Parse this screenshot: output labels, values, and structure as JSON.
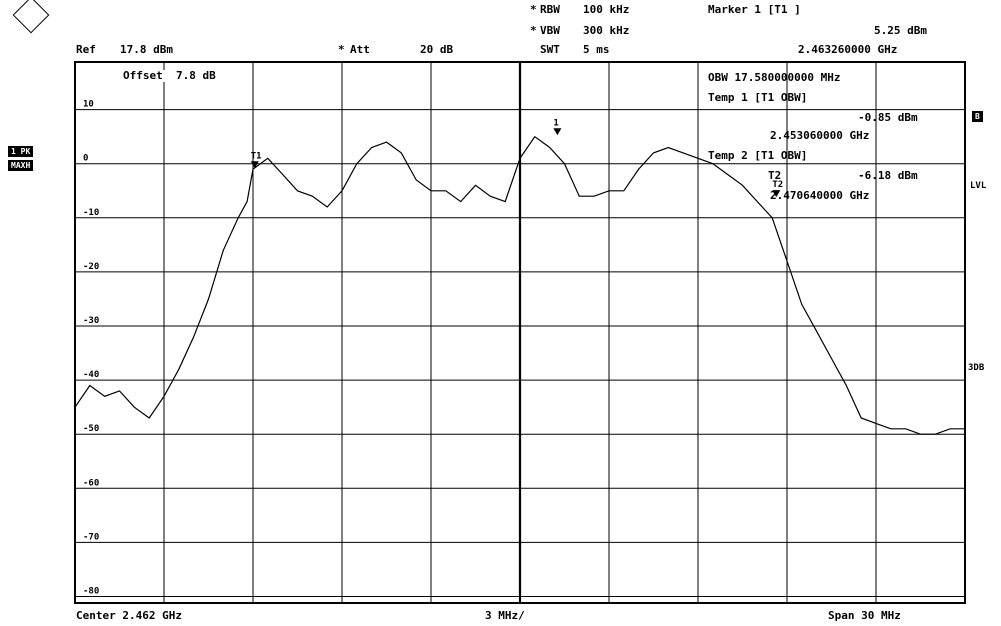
{
  "header": {
    "rbw_label": "RBW",
    "rbw_value": "100 kHz",
    "vbw_label": "VBW",
    "vbw_value": "300 kHz",
    "swt_label": "SWT",
    "swt_value": "5 ms",
    "marker_title": "Marker 1 [T1 ]",
    "marker_level": "5.25 dBm",
    "marker_freq": "2.463260000 GHz",
    "ref_label": "Ref",
    "ref_value": "17.8 dBm",
    "att_label": "Att",
    "att_value": "20 dB",
    "star": "*"
  },
  "side": {
    "badge_top": "1 PK",
    "badge_bottom": "MAXH",
    "right_badge": "B",
    "lvl": "LVL",
    "three_db": "3DB"
  },
  "overlay": {
    "offset": "Offset  7.8 dB",
    "obw_line": "OBW 17.580000000 MHz",
    "temp1_title": "Temp 1 [T1 OBW]",
    "temp1_level": "-0.85 dBm",
    "temp1_freq": "2.453060000 GHz",
    "temp2_title": "Temp 2 [T1 OBW]",
    "temp2_prefix": "T2",
    "temp2_level": "-6.18 dBm",
    "temp2_freq": "2.470640000 GHz"
  },
  "footer": {
    "center": "Center 2.462 GHz",
    "div": "3 MHz/",
    "span": "Span 30 MHz"
  },
  "chart_data": {
    "type": "line",
    "xlabel": "",
    "ylabel": "",
    "ylim": [
      -81.2,
      18.8
    ],
    "xlim": [
      2.447,
      2.477
    ],
    "y_ticks": [
      10,
      0,
      -10,
      -20,
      -30,
      -40,
      -50,
      -60,
      -70,
      -80
    ],
    "y_tick_labels": [
      "10",
      "0",
      "-10",
      "-20",
      "-30",
      "-40",
      "-50",
      "-60",
      "-70",
      "-80"
    ],
    "grid": true,
    "markers": [
      {
        "label": "1",
        "x": 2.46326,
        "y": 5.25
      },
      {
        "label": "T1",
        "x": 2.45306,
        "y": -0.85
      },
      {
        "label": "T2",
        "x": 2.47064,
        "y": -6.18
      }
    ],
    "series": [
      {
        "x": [
          2.447,
          2.4475,
          2.448,
          2.4485,
          2.449,
          2.4495,
          2.45,
          2.4505,
          2.451,
          2.4515,
          2.452,
          2.4525,
          2.4528,
          2.453,
          2.4535,
          2.454,
          2.4545,
          2.455,
          2.4555,
          2.456,
          2.4565,
          2.457,
          2.4575,
          2.458,
          2.4585,
          2.459,
          2.4595,
          2.46,
          2.4605,
          2.461,
          2.4615,
          2.462,
          2.4625,
          2.463,
          2.4635,
          2.464,
          2.4645,
          2.465,
          2.4655,
          2.466,
          2.4665,
          2.467,
          2.4675,
          2.468,
          2.4685,
          2.469,
          2.4695,
          2.47,
          2.4705,
          2.471,
          2.4715,
          2.472,
          2.4725,
          2.473,
          2.4735,
          2.474,
          2.4745,
          2.475,
          2.4755,
          2.476,
          2.4765,
          2.477
        ],
        "y": [
          -45,
          -41,
          -43,
          -42,
          -45,
          -47,
          -43,
          -38,
          -32,
          -25,
          -16,
          -10,
          -7,
          -1,
          1,
          -2,
          -5,
          -6,
          -8,
          -5,
          0,
          3,
          4,
          2,
          -3,
          -5,
          -5,
          -7,
          -4,
          -6,
          -7,
          1,
          5,
          3,
          0,
          -6,
          -6,
          -5,
          -5,
          -1,
          2,
          3,
          2,
          1,
          0,
          -2,
          -4,
          -7,
          -10,
          -18,
          -26,
          -31,
          -36,
          -41,
          -47,
          -48,
          -49,
          -49,
          -50,
          -50,
          -49,
          -49
        ]
      }
    ]
  }
}
